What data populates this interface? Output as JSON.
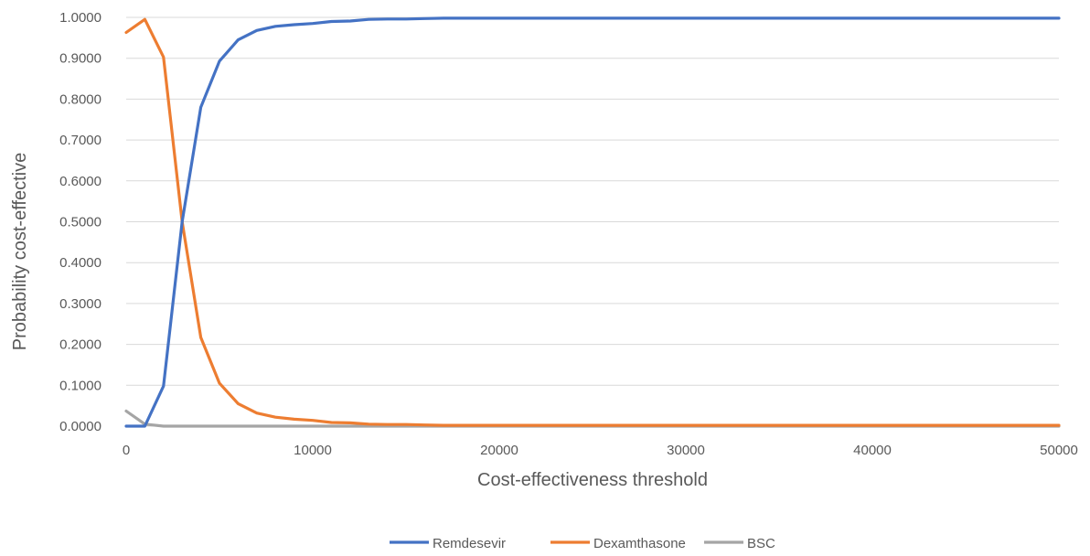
{
  "chart_data": {
    "type": "line",
    "title": "",
    "xlabel": "Cost-effectiveness threshold",
    "ylabel": "Probability cost-effective",
    "xlim": [
      0,
      50000
    ],
    "ylim": [
      0,
      1
    ],
    "x_ticks": [
      0,
      10000,
      20000,
      30000,
      40000,
      50000
    ],
    "x_tick_labels": [
      "0",
      "10000",
      "20000",
      "30000",
      "40000",
      "50000"
    ],
    "y_ticks": [
      0,
      0.1,
      0.2,
      0.3,
      0.4,
      0.5,
      0.6,
      0.7,
      0.8,
      0.9,
      1.0
    ],
    "y_tick_labels": [
      "0.0000",
      "0.1000",
      "0.2000",
      "0.3000",
      "0.4000",
      "0.5000",
      "0.6000",
      "0.7000",
      "0.8000",
      "0.9000",
      "1.0000"
    ],
    "grid": true,
    "legend_position": "bottom",
    "x": [
      0,
      1000,
      2000,
      3000,
      4000,
      5000,
      6000,
      7000,
      8000,
      9000,
      10000,
      11000,
      12000,
      13000,
      14000,
      15000,
      16000,
      17000,
      18000,
      19000,
      20000,
      21000,
      22000,
      23000,
      24000,
      25000,
      26000,
      27000,
      28000,
      29000,
      30000,
      31000,
      32000,
      33000,
      34000,
      35000,
      36000,
      37000,
      38000,
      39000,
      40000,
      41000,
      42000,
      43000,
      44000,
      45000,
      46000,
      47000,
      48000,
      49000,
      50000
    ],
    "series": [
      {
        "name": "Remdesevir",
        "color": "#4472c4",
        "values": [
          0,
          0,
          0.098,
          0.5,
          0.78,
          0.893,
          0.945,
          0.968,
          0.978,
          0.982,
          0.985,
          0.99,
          0.991,
          0.995,
          0.996,
          0.996,
          0.997,
          0.998,
          0.998,
          0.998,
          0.998,
          0.998,
          0.998,
          0.998,
          0.998,
          0.998,
          0.998,
          0.998,
          0.998,
          0.998,
          0.998,
          0.998,
          0.998,
          0.998,
          0.998,
          0.998,
          0.998,
          0.998,
          0.998,
          0.998,
          0.998,
          0.998,
          0.998,
          0.998,
          0.998,
          0.998,
          0.998,
          0.998,
          0.998,
          0.998,
          0.998
        ]
      },
      {
        "name": "Dexamthasone",
        "color": "#ed7d31",
        "values": [
          0.963,
          0.995,
          0.903,
          0.5,
          0.217,
          0.105,
          0.055,
          0.032,
          0.022,
          0.017,
          0.014,
          0.009,
          0.008,
          0.005,
          0.004,
          0.004,
          0.003,
          0.002,
          0.002,
          0.002,
          0.002,
          0.002,
          0.002,
          0.002,
          0.002,
          0.002,
          0.002,
          0.002,
          0.002,
          0.002,
          0.002,
          0.002,
          0.002,
          0.002,
          0.002,
          0.002,
          0.002,
          0.002,
          0.002,
          0.002,
          0.002,
          0.002,
          0.002,
          0.002,
          0.002,
          0.002,
          0.002,
          0.002,
          0.002,
          0.002,
          0.002
        ]
      },
      {
        "name": "BSC",
        "color": "#a5a5a5",
        "values": [
          0.037,
          0.005,
          0,
          0,
          0,
          0,
          0,
          0,
          0,
          0,
          0,
          0,
          0,
          0,
          0,
          0,
          0,
          0,
          0,
          0,
          0,
          0,
          0,
          0,
          0,
          0,
          0,
          0,
          0,
          0,
          0,
          0,
          0,
          0,
          0,
          0,
          0,
          0,
          0,
          0,
          0,
          0,
          0,
          0,
          0,
          0,
          0,
          0,
          0,
          0,
          0
        ]
      }
    ]
  }
}
